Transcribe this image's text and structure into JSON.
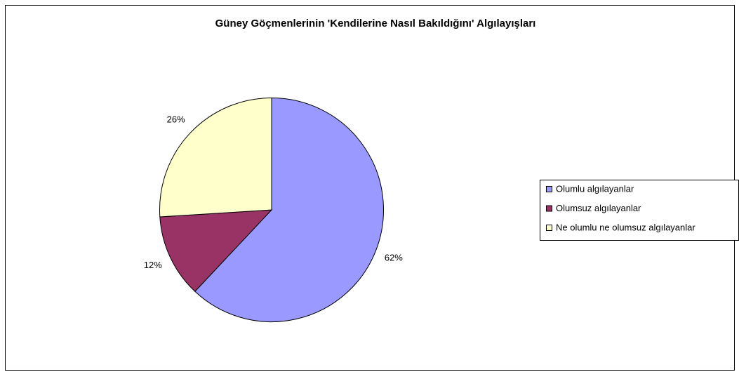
{
  "chart_data": {
    "type": "pie",
    "title": "Güney Göçmenlerinin 'Kendilerine Nasıl Bakıldığını' Algılayışları",
    "categories": [
      "Olumlu algılayanlar",
      "Olumsuz algılayanlar",
      "Ne olumlu ne olumsuz algılayanlar"
    ],
    "values": [
      62,
      12,
      26
    ],
    "value_labels": [
      "62%",
      "12%",
      "26%"
    ],
    "colors": [
      "#9999ff",
      "#993366",
      "#ffffcc"
    ],
    "legend": "right"
  }
}
